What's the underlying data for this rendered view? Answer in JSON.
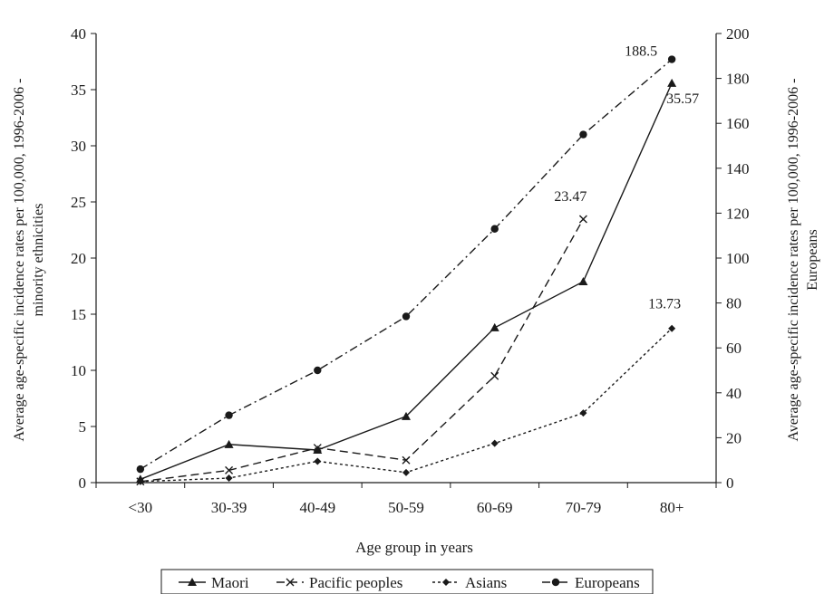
{
  "chart_data": {
    "type": "line",
    "categories": [
      "<30",
      "30-39",
      "40-49",
      "50-59",
      "60-69",
      "70-79",
      "80+"
    ],
    "xlabel": "Age group in years",
    "ylabel_left": [
      "Average age-specific incidence rates per 100,000, 1996-2006 -",
      "minority ethnicities"
    ],
    "ylabel_right": [
      "Average age-specific incidence rates per 100,000, 1996-2006 -",
      "Europeans"
    ],
    "y_left": {
      "min": 0,
      "max": 40,
      "step": 5,
      "ticks": [
        "0",
        "5",
        "10",
        "15",
        "20",
        "25",
        "30",
        "35",
        "40"
      ]
    },
    "y_right": {
      "min": 0,
      "max": 200,
      "step": 20,
      "ticks": [
        "0",
        "20",
        "40",
        "60",
        "80",
        "100",
        "120",
        "140",
        "160",
        "180",
        "200"
      ]
    },
    "grid": false,
    "legend_position": "bottom",
    "series": [
      {
        "name": "Maori",
        "axis": "left",
        "marker": "triangle",
        "dash": "solid",
        "color": "#1a1a1a",
        "values": [
          0.3,
          3.4,
          2.9,
          5.9,
          13.8,
          17.9,
          35.57
        ],
        "end_label": "35.57"
      },
      {
        "name": "Pacific peoples",
        "axis": "left",
        "marker": "cross",
        "dash": "dashed",
        "color": "#1a1a1a",
        "values": [
          0.1,
          1.1,
          3.1,
          2.0,
          9.5,
          23.47,
          null
        ],
        "end_label": "23.47"
      },
      {
        "name": "Asians",
        "axis": "left",
        "marker": "diamond",
        "dash": "dotted",
        "color": "#1a1a1a",
        "values": [
          0.1,
          0.4,
          1.9,
          0.9,
          3.5,
          6.2,
          13.73
        ],
        "end_label": "13.73"
      },
      {
        "name": "Europeans",
        "axis": "right",
        "marker": "circle",
        "dash": "dashdot",
        "color": "#1a1a1a",
        "values": [
          6,
          30,
          50,
          74,
          113,
          155,
          188.5
        ],
        "end_label": "188.5"
      }
    ]
  }
}
